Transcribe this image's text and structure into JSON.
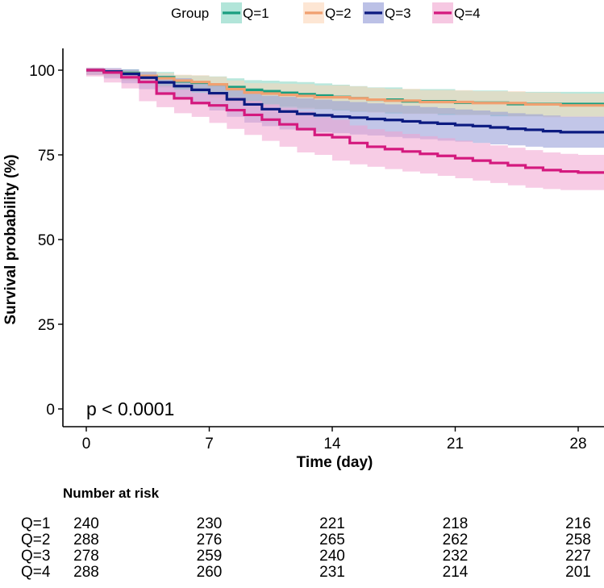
{
  "chart_data": {
    "type": "line",
    "subtype": "kaplan-meier survival curve with confidence bands",
    "title": "",
    "xlabel": "Time (day)",
    "ylabel": "Survival probability (%)",
    "xlim": [
      -1.2,
      29.5
    ],
    "ylim": [
      -2,
      104
    ],
    "xticks": [
      0,
      7,
      14,
      21,
      28
    ],
    "yticks": [
      0,
      25,
      50,
      75,
      100
    ],
    "grid": false,
    "annotation": "p < 0.0001",
    "legend": {
      "title": "Group",
      "position": "top"
    },
    "series": [
      {
        "name": "Q=1",
        "color": "#1a9e80",
        "fill": "#7fd4c0",
        "points": [
          [
            0,
            100
          ],
          [
            1,
            99.6
          ],
          [
            2,
            99.2
          ],
          [
            3,
            98.3
          ],
          [
            4,
            97.9
          ],
          [
            5,
            96.7
          ],
          [
            6,
            96.3
          ],
          [
            7,
            95.8
          ],
          [
            8,
            95
          ],
          [
            9,
            94.2
          ],
          [
            10,
            93.8
          ],
          [
            11,
            93.3
          ],
          [
            12,
            92.9
          ],
          [
            13,
            92.5
          ],
          [
            14,
            92.1
          ],
          [
            15,
            91.7
          ],
          [
            16,
            91.3
          ],
          [
            17,
            91.3
          ],
          [
            18,
            90.8
          ],
          [
            19,
            90.8
          ],
          [
            20,
            90.8
          ],
          [
            21,
            90.4
          ],
          [
            22,
            90.4
          ],
          [
            23,
            90.4
          ],
          [
            24,
            90
          ],
          [
            25,
            90
          ],
          [
            26,
            90
          ],
          [
            27,
            90
          ],
          [
            28,
            90
          ],
          [
            29.5,
            90
          ]
        ],
        "ci": 3.6
      },
      {
        "name": "Q=2",
        "color": "#f0a070",
        "fill": "#fbd5b8",
        "points": [
          [
            0,
            100
          ],
          [
            1,
            99.3
          ],
          [
            2,
            99
          ],
          [
            3,
            98.3
          ],
          [
            4,
            97.6
          ],
          [
            5,
            96.9
          ],
          [
            6,
            96.5
          ],
          [
            7,
            95.8
          ],
          [
            8,
            94.4
          ],
          [
            9,
            93.4
          ],
          [
            10,
            93.1
          ],
          [
            11,
            92.7
          ],
          [
            12,
            92.4
          ],
          [
            13,
            92
          ],
          [
            14,
            92
          ],
          [
            15,
            91.7
          ],
          [
            16,
            91.3
          ],
          [
            17,
            91
          ],
          [
            18,
            91
          ],
          [
            19,
            90.6
          ],
          [
            20,
            90.6
          ],
          [
            21,
            90.6
          ],
          [
            22,
            90.3
          ],
          [
            23,
            90.3
          ],
          [
            24,
            90.3
          ],
          [
            25,
            89.9
          ],
          [
            26,
            89.9
          ],
          [
            27,
            89.6
          ],
          [
            28,
            89.6
          ],
          [
            29.5,
            89.6
          ]
        ],
        "ci": 3.5
      },
      {
        "name": "Q=3",
        "color": "#0b1a80",
        "fill": "#8f97d6",
        "points": [
          [
            0,
            100
          ],
          [
            1,
            99.6
          ],
          [
            2,
            98.9
          ],
          [
            3,
            97.8
          ],
          [
            4,
            96.4
          ],
          [
            5,
            95.3
          ],
          [
            6,
            94.2
          ],
          [
            7,
            93.2
          ],
          [
            8,
            91.4
          ],
          [
            9,
            89.9
          ],
          [
            10,
            88.5
          ],
          [
            11,
            87.8
          ],
          [
            12,
            87.1
          ],
          [
            13,
            86.7
          ],
          [
            14,
            86.3
          ],
          [
            15,
            86
          ],
          [
            16,
            85.6
          ],
          [
            17,
            85.3
          ],
          [
            18,
            84.9
          ],
          [
            19,
            84.5
          ],
          [
            20,
            84.2
          ],
          [
            21,
            83.8
          ],
          [
            22,
            83.5
          ],
          [
            23,
            83.1
          ],
          [
            24,
            82.7
          ],
          [
            25,
            82.4
          ],
          [
            26,
            82
          ],
          [
            27,
            81.7
          ],
          [
            28,
            81.7
          ],
          [
            29.5,
            81.7
          ]
        ],
        "ci": 4.6
      },
      {
        "name": "Q=4",
        "color": "#d4197e",
        "fill": "#f0a3cf",
        "points": [
          [
            0,
            100
          ],
          [
            1,
            99.3
          ],
          [
            2,
            97.9
          ],
          [
            3,
            96.5
          ],
          [
            4,
            93.1
          ],
          [
            5,
            91.7
          ],
          [
            6,
            90.3
          ],
          [
            7,
            89.6
          ],
          [
            8,
            88.2
          ],
          [
            9,
            86.8
          ],
          [
            10,
            85.4
          ],
          [
            11,
            84
          ],
          [
            12,
            82.6
          ],
          [
            13,
            80.9
          ],
          [
            14,
            80.2
          ],
          [
            15,
            78.5
          ],
          [
            16,
            77.4
          ],
          [
            17,
            76.7
          ],
          [
            18,
            76
          ],
          [
            19,
            75.3
          ],
          [
            20,
            74.7
          ],
          [
            21,
            74
          ],
          [
            22,
            73.3
          ],
          [
            23,
            72.6
          ],
          [
            24,
            71.9
          ],
          [
            25,
            71.2
          ],
          [
            26,
            70.5
          ],
          [
            27,
            70.1
          ],
          [
            28,
            69.8
          ],
          [
            29.5,
            69.8
          ]
        ],
        "ci": 5.2
      }
    ]
  },
  "risk_table": {
    "title": "Number at risk",
    "times": [
      0,
      7,
      14,
      21,
      28
    ],
    "rows": [
      {
        "label": "Q=1",
        "values": [
          "240",
          "230",
          "221",
          "218",
          "216"
        ]
      },
      {
        "label": "Q=2",
        "values": [
          "288",
          "276",
          "265",
          "262",
          "258"
        ]
      },
      {
        "label": "Q=3",
        "values": [
          "278",
          "259",
          "240",
          "232",
          "227"
        ]
      },
      {
        "label": "Q=4",
        "values": [
          "288",
          "260",
          "231",
          "214",
          "201"
        ]
      }
    ]
  }
}
